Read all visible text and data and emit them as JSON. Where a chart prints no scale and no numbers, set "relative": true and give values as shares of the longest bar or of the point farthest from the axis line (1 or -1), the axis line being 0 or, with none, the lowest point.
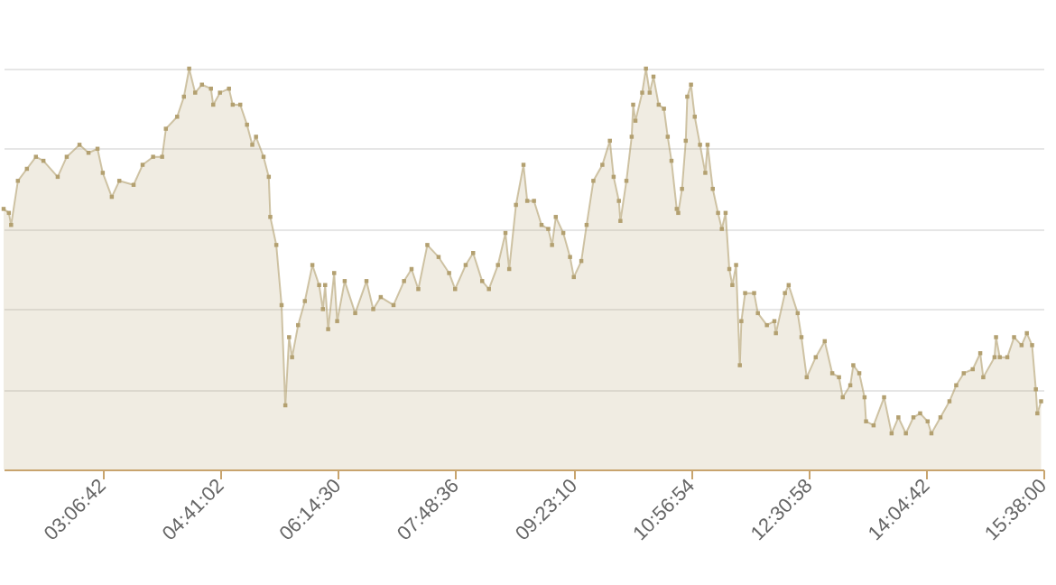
{
  "chart_data": {
    "type": "area",
    "relative": true,
    "grid": "y",
    "marker": "square",
    "xlim": [
      1.8,
      15.64
    ],
    "xticks": [
      {
        "value": 3.1117,
        "label": "03:06:42"
      },
      {
        "value": 4.6839,
        "label": "04:41:02"
      },
      {
        "value": 6.2417,
        "label": "06:14:30"
      },
      {
        "value": 7.81,
        "label": "07:48:36"
      },
      {
        "value": 9.3861,
        "label": "09:23:10"
      },
      {
        "value": 10.9483,
        "label": "10:56:54"
      },
      {
        "value": 12.5161,
        "label": "12:30:58"
      },
      {
        "value": 14.0783,
        "label": "14:04:42"
      },
      {
        "value": 15.6333,
        "label": "15:38:00"
      }
    ],
    "x": [
      1.8,
      1.87,
      1.9,
      1.99,
      2.11,
      2.23,
      2.33,
      2.52,
      2.64,
      2.81,
      2.93,
      3.05,
      3.12,
      3.24,
      3.34,
      3.53,
      3.65,
      3.79,
      3.91,
      3.96,
      4.11,
      4.2,
      4.27,
      4.35,
      4.44,
      4.56,
      4.59,
      4.68,
      4.8,
      4.85,
      4.95,
      5.04,
      5.11,
      5.16,
      5.26,
      5.33,
      5.35,
      5.43,
      5.5,
      5.55,
      5.6,
      5.64,
      5.72,
      5.81,
      5.91,
      6.0,
      6.05,
      6.08,
      6.12,
      6.2,
      6.24,
      6.34,
      6.48,
      6.63,
      6.72,
      6.82,
      6.99,
      7.13,
      7.23,
      7.32,
      7.44,
      7.59,
      7.73,
      7.81,
      7.95,
      8.05,
      8.17,
      8.26,
      8.38,
      8.48,
      8.53,
      8.62,
      8.72,
      8.77,
      8.86,
      8.96,
      9.05,
      9.1,
      9.15,
      9.25,
      9.34,
      9.39,
      9.49,
      9.56,
      9.65,
      9.77,
      9.87,
      9.92,
      9.99,
      10.01,
      10.09,
      10.16,
      10.18,
      10.21,
      10.3,
      10.35,
      10.4,
      10.45,
      10.52,
      10.59,
      10.64,
      10.69,
      10.76,
      10.78,
      10.83,
      10.88,
      10.9,
      10.95,
      11.0,
      11.07,
      11.14,
      11.17,
      11.24,
      11.31,
      11.36,
      11.41,
      11.46,
      11.5,
      11.55,
      11.6,
      11.62,
      11.67,
      11.79,
      11.84,
      11.96,
      12.06,
      12.08,
      12.2,
      12.25,
      12.37,
      12.42,
      12.49,
      12.61,
      12.73,
      12.83,
      12.92,
      12.97,
      13.07,
      13.11,
      13.19,
      13.26,
      13.28,
      13.38,
      13.52,
      13.62,
      13.71,
      13.81,
      13.91,
      14.0,
      14.1,
      14.15,
      14.27,
      14.39,
      14.48,
      14.58,
      14.7,
      14.8,
      14.84,
      14.99,
      15.01,
      15.06,
      15.16,
      15.25,
      15.35,
      15.42,
      15.49,
      15.54,
      15.56,
      15.61
    ],
    "series": [
      {
        "color": "#b3a070",
        "values": [
          0.65,
          0.64,
          0.61,
          0.72,
          0.75,
          0.78,
          0.77,
          0.73,
          0.78,
          0.81,
          0.79,
          0.8,
          0.74,
          0.68,
          0.72,
          0.71,
          0.76,
          0.78,
          0.78,
          0.85,
          0.88,
          0.93,
          1.0,
          0.94,
          0.96,
          0.95,
          0.91,
          0.94,
          0.95,
          0.91,
          0.91,
          0.86,
          0.81,
          0.83,
          0.78,
          0.73,
          0.63,
          0.56,
          0.41,
          0.16,
          0.33,
          0.28,
          0.36,
          0.42,
          0.51,
          0.46,
          0.4,
          0.46,
          0.35,
          0.49,
          0.37,
          0.47,
          0.39,
          0.47,
          0.4,
          0.43,
          0.41,
          0.47,
          0.5,
          0.45,
          0.56,
          0.53,
          0.49,
          0.45,
          0.51,
          0.54,
          0.47,
          0.45,
          0.51,
          0.59,
          0.5,
          0.66,
          0.76,
          0.67,
          0.67,
          0.61,
          0.6,
          0.56,
          0.63,
          0.59,
          0.53,
          0.48,
          0.52,
          0.61,
          0.72,
          0.76,
          0.82,
          0.73,
          0.67,
          0.62,
          0.72,
          0.83,
          0.91,
          0.87,
          0.94,
          1.0,
          0.94,
          0.98,
          0.91,
          0.9,
          0.83,
          0.77,
          0.65,
          0.64,
          0.7,
          0.82,
          0.93,
          0.96,
          0.88,
          0.81,
          0.74,
          0.81,
          0.7,
          0.64,
          0.6,
          0.64,
          0.5,
          0.46,
          0.51,
          0.26,
          0.37,
          0.44,
          0.44,
          0.39,
          0.36,
          0.37,
          0.34,
          0.44,
          0.46,
          0.39,
          0.33,
          0.23,
          0.28,
          0.32,
          0.24,
          0.23,
          0.18,
          0.21,
          0.26,
          0.24,
          0.18,
          0.12,
          0.11,
          0.18,
          0.09,
          0.13,
          0.09,
          0.13,
          0.14,
          0.12,
          0.09,
          0.13,
          0.17,
          0.21,
          0.24,
          0.25,
          0.29,
          0.23,
          0.28,
          0.33,
          0.28,
          0.28,
          0.33,
          0.31,
          0.34,
          0.31,
          0.2,
          0.14,
          0.17
        ]
      }
    ]
  }
}
